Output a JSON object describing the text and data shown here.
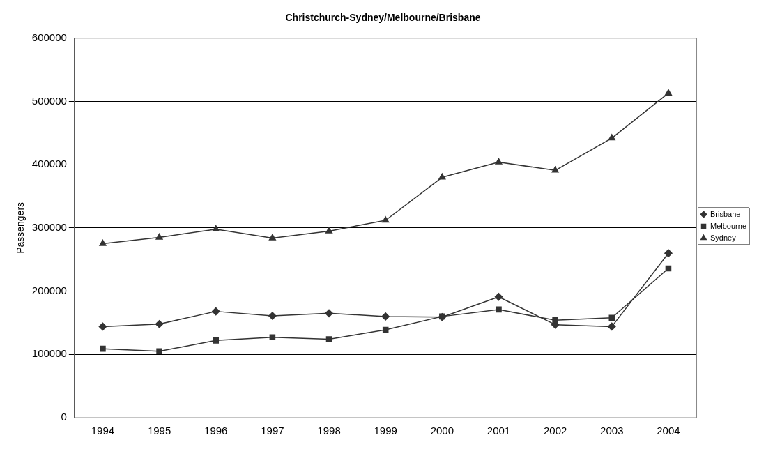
{
  "chart_data": {
    "type": "line",
    "title": "Christchurch-Sydney/Melbourne/Brisbane",
    "ylabel": "Passengers",
    "categories": [
      "1994",
      "1995",
      "1996",
      "1997",
      "1998",
      "1999",
      "2000",
      "2001",
      "2002",
      "2003",
      "2004"
    ],
    "series": [
      {
        "name": "Brisbane",
        "color": "#333333",
        "marker": "diamond",
        "values": [
          144000,
          148000,
          168000,
          161000,
          165000,
          160000,
          159000,
          191000,
          147000,
          144000,
          260000
        ]
      },
      {
        "name": "Melbourne",
        "color": "#333333",
        "marker": "square",
        "values": [
          109000,
          105000,
          122000,
          127000,
          124000,
          139000,
          160000,
          171000,
          154000,
          158000,
          236000
        ]
      },
      {
        "name": "Sydney",
        "color": "#333333",
        "marker": "triangle",
        "values": [
          275000,
          285000,
          298000,
          284000,
          295000,
          312000,
          380000,
          404000,
          391000,
          442000,
          513000
        ]
      }
    ],
    "ylim": [
      0,
      600000
    ],
    "yticks": [
      0,
      100000,
      200000,
      300000,
      400000,
      500000,
      600000
    ],
    "grid": "y",
    "legend": "right",
    "line_style": "solid"
  }
}
